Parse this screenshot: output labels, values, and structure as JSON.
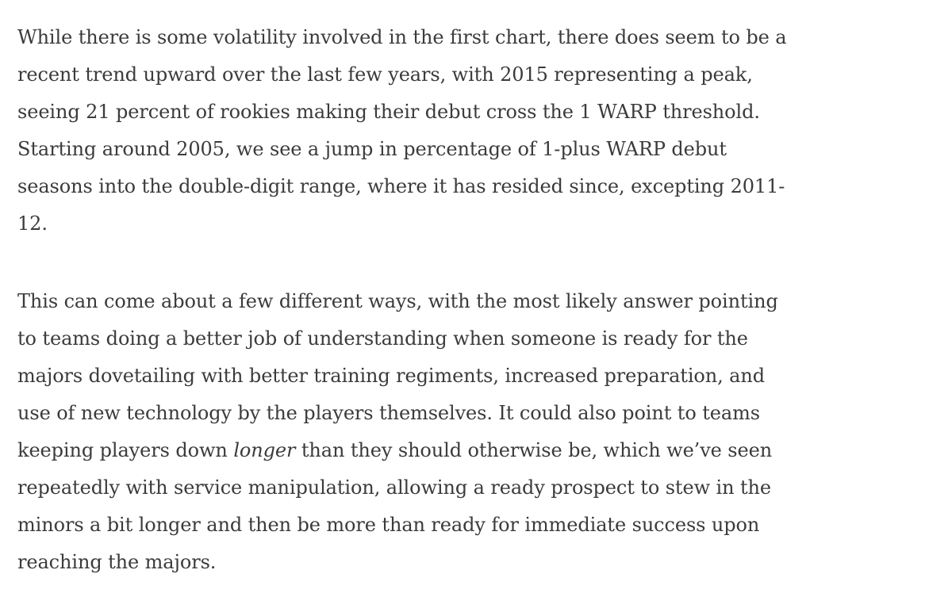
{
  "paragraphs": [
    {
      "lines": [
        "While there is some volatility involved in the first chart, there does seem to be a",
        "recent trend upward over the last few years, with 2015 representing a peak,",
        "seeing 21 percent of rookies making their debut cross the 1 WARP threshold.",
        "Starting around 2005, we see a jump in percentage of 1-plus WARP debut",
        "seasons into the double-digit range, where it has resided since, excepting 2011-",
        "12."
      ]
    },
    {
      "lines": [
        "This can come about a few different ways, with the most likely answer pointing",
        "to teams doing a better job of understanding when someone is ready for the",
        "majors dovetailing with better training regiments, increased preparation, and",
        "use of new technology by the players themselves. It could also point to teams",
        {
          "before": "keeping players down ",
          "em": "longer",
          "after": " than they should otherwise be, which we’ve seen"
        },
        "repeatedly with service manipulation, allowing a ready prospect to stew in the",
        "minors a bit longer and then be more than ready for immediate success upon",
        "reaching the majors."
      ]
    }
  ]
}
